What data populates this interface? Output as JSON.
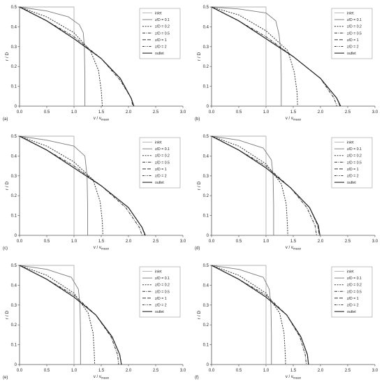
{
  "layout": {
    "cols": 2,
    "rows": 3
  },
  "legend_labels": [
    "inlet",
    "z/D = 0.1",
    "z/D = 0.2",
    "z/D = 0.5",
    "z/D = 1",
    "z/D = 2",
    "outlet"
  ],
  "chart_data": [
    {
      "type": "line",
      "panel_label": "(a)",
      "xlabel_main": "v / v",
      "xlabel_sub": "mean",
      "ylabel": "r / D",
      "xlim": [
        0,
        3
      ],
      "ylim": [
        0,
        0.5
      ],
      "xticks": [
        "0.0",
        "0.5",
        "1.0",
        "1.5",
        "2.0",
        "2.5",
        "3.0"
      ],
      "yticks": [
        "0",
        "0.1",
        "0.2",
        "0.3",
        "0.4",
        "0.5"
      ],
      "grid": false,
      "legend": "top-right",
      "series": [
        {
          "name": "inlet",
          "x": [
            0,
            1,
            1,
            1
          ],
          "y": [
            0.5,
            0.5,
            0.25,
            0
          ]
        },
        {
          "name": "z/D = 0.1",
          "x": [
            0,
            0.5,
            0.9,
            1.1,
            1.17,
            1.19,
            1.2,
            1.2
          ],
          "y": [
            0.5,
            0.48,
            0.45,
            0.41,
            0.37,
            0.3,
            0.15,
            0
          ]
        },
        {
          "name": "z/D = 0.2",
          "x": [
            0,
            0.5,
            1.0,
            1.3,
            1.45,
            1.5,
            1.52
          ],
          "y": [
            0.5,
            0.45,
            0.37,
            0.28,
            0.18,
            0.08,
            0
          ]
        },
        {
          "name": "z/D = 0.5",
          "x": [
            0,
            0.5,
            1.0,
            1.5,
            1.85,
            2.05,
            2.08
          ],
          "y": [
            0.5,
            0.43,
            0.35,
            0.24,
            0.13,
            0.04,
            0
          ]
        },
        {
          "name": "z/D = 1",
          "x": [
            0,
            0.5,
            1.0,
            1.5,
            1.85,
            2.05,
            2.1
          ],
          "y": [
            0.5,
            0.43,
            0.34,
            0.24,
            0.14,
            0.04,
            0
          ]
        },
        {
          "name": "z/D = 2",
          "x": [
            0,
            0.5,
            1.0,
            1.5,
            1.85,
            2.05,
            2.1
          ],
          "y": [
            0.5,
            0.43,
            0.34,
            0.24,
            0.14,
            0.04,
            0
          ]
        },
        {
          "name": "outlet",
          "x": [
            0,
            0.5,
            1.0,
            1.5,
            1.85,
            2.05,
            2.1
          ],
          "y": [
            0.5,
            0.43,
            0.34,
            0.24,
            0.14,
            0.04,
            0
          ]
        }
      ]
    },
    {
      "type": "line",
      "panel_label": "(b)",
      "xlabel_main": "v / v",
      "xlabel_sub": "mean",
      "ylabel": "r / D",
      "xlim": [
        0,
        3
      ],
      "ylim": [
        0,
        0.5
      ],
      "xticks": [
        "0.0",
        "0.5",
        "1.0",
        "1.5",
        "2.0",
        "2.5",
        "3.0"
      ],
      "yticks": [
        "0",
        "0.1",
        "0.2",
        "0.3",
        "0.4",
        "0.5"
      ],
      "grid": false,
      "legend": "top-right",
      "series": [
        {
          "name": "inlet",
          "x": [
            0,
            1,
            1,
            1
          ],
          "y": [
            0.5,
            0.5,
            0.25,
            0
          ]
        },
        {
          "name": "z/D = 0.1",
          "x": [
            0,
            0.5,
            1.0,
            1.18,
            1.24,
            1.27,
            1.28,
            1.28
          ],
          "y": [
            0.5,
            0.49,
            0.47,
            0.43,
            0.36,
            0.28,
            0.15,
            0
          ]
        },
        {
          "name": "z/D = 0.2",
          "x": [
            0,
            0.5,
            1.0,
            1.4,
            1.52,
            1.57,
            1.58
          ],
          "y": [
            0.5,
            0.46,
            0.38,
            0.28,
            0.17,
            0.07,
            0
          ]
        },
        {
          "name": "z/D = 0.5",
          "x": [
            0,
            0.5,
            1.0,
            1.5,
            2.0,
            2.25,
            2.3
          ],
          "y": [
            0.5,
            0.43,
            0.35,
            0.25,
            0.14,
            0.04,
            0
          ]
        },
        {
          "name": "z/D = 1",
          "x": [
            0,
            0.5,
            1.0,
            1.5,
            2.0,
            2.3,
            2.36
          ],
          "y": [
            0.5,
            0.43,
            0.34,
            0.25,
            0.14,
            0.04,
            0
          ]
        },
        {
          "name": "z/D = 2",
          "x": [
            0,
            0.5,
            1.0,
            1.5,
            2.0,
            2.3,
            2.37
          ],
          "y": [
            0.5,
            0.43,
            0.34,
            0.25,
            0.14,
            0.04,
            0
          ]
        },
        {
          "name": "outlet",
          "x": [
            0,
            0.5,
            1.0,
            1.5,
            2.0,
            2.3,
            2.37
          ],
          "y": [
            0.5,
            0.43,
            0.34,
            0.25,
            0.14,
            0.04,
            0
          ]
        }
      ]
    },
    {
      "type": "line",
      "panel_label": "(c)",
      "xlabel_main": "v / v",
      "xlabel_sub": "mean",
      "ylabel": "r / D",
      "xlim": [
        0,
        3
      ],
      "ylim": [
        0,
        0.5
      ],
      "xticks": [
        "0.0",
        "0.5",
        "1.0",
        "1.5",
        "2.0",
        "2.5",
        "3.0"
      ],
      "yticks": [
        "0",
        "0.1",
        "0.2",
        "0.3",
        "0.4",
        "0.5"
      ],
      "grid": false,
      "legend": "top-right",
      "series": [
        {
          "name": "inlet",
          "x": [
            0,
            1,
            1,
            1
          ],
          "y": [
            0.5,
            0.5,
            0.25,
            0
          ]
        },
        {
          "name": "z/D = 0.1",
          "x": [
            0,
            0.5,
            1.0,
            1.2,
            1.24,
            1.25,
            1.25
          ],
          "y": [
            0.5,
            0.48,
            0.45,
            0.4,
            0.3,
            0.15,
            0
          ]
        },
        {
          "name": "z/D = 0.2",
          "x": [
            0,
            0.5,
            1.0,
            1.35,
            1.48,
            1.52,
            1.53
          ],
          "y": [
            0.5,
            0.45,
            0.37,
            0.28,
            0.17,
            0.07,
            0
          ]
        },
        {
          "name": "z/D = 0.5",
          "x": [
            0,
            0.5,
            1.0,
            1.5,
            1.95,
            2.2,
            2.25
          ],
          "y": [
            0.5,
            0.43,
            0.35,
            0.25,
            0.14,
            0.04,
            0
          ]
        },
        {
          "name": "z/D = 1",
          "x": [
            0,
            0.5,
            1.0,
            1.5,
            2.0,
            2.25,
            2.3
          ],
          "y": [
            0.5,
            0.43,
            0.34,
            0.25,
            0.14,
            0.04,
            0
          ]
        },
        {
          "name": "z/D = 2",
          "x": [
            0,
            0.5,
            1.0,
            1.5,
            2.0,
            2.25,
            2.31
          ],
          "y": [
            0.5,
            0.43,
            0.34,
            0.25,
            0.14,
            0.04,
            0
          ]
        },
        {
          "name": "outlet",
          "x": [
            0,
            0.5,
            1.0,
            1.5,
            2.0,
            2.25,
            2.31
          ],
          "y": [
            0.5,
            0.43,
            0.34,
            0.25,
            0.14,
            0.04,
            0
          ]
        }
      ]
    },
    {
      "type": "line",
      "panel_label": "(d)",
      "xlabel_main": "v / v",
      "xlabel_sub": "mean",
      "ylabel": "r / D",
      "xlim": [
        0,
        3
      ],
      "ylim": [
        0,
        0.5
      ],
      "xticks": [
        "0.0",
        "0.5",
        "1.0",
        "1.5",
        "2.0",
        "2.5",
        "3.0"
      ],
      "yticks": [
        "0",
        "0.1",
        "0.2",
        "0.3",
        "0.4",
        "0.5"
      ],
      "grid": false,
      "legend": "top-right",
      "series": [
        {
          "name": "inlet",
          "x": [
            0,
            1,
            1,
            1
          ],
          "y": [
            0.5,
            0.5,
            0.25,
            0
          ]
        },
        {
          "name": "z/D = 0.1",
          "x": [
            0,
            0.5,
            0.95,
            1.1,
            1.13,
            1.14,
            1.14
          ],
          "y": [
            0.5,
            0.48,
            0.44,
            0.38,
            0.3,
            0.15,
            0
          ]
        },
        {
          "name": "z/D = 0.2",
          "x": [
            0,
            0.5,
            1.0,
            1.28,
            1.37,
            1.39,
            1.4
          ],
          "y": [
            0.5,
            0.45,
            0.36,
            0.26,
            0.16,
            0.07,
            0
          ]
        },
        {
          "name": "z/D = 0.5",
          "x": [
            0,
            0.5,
            1.0,
            1.45,
            1.75,
            1.9,
            1.93
          ],
          "y": [
            0.5,
            0.43,
            0.35,
            0.24,
            0.14,
            0.05,
            0
          ]
        },
        {
          "name": "z/D = 1",
          "x": [
            0,
            0.5,
            1.0,
            1.45,
            1.8,
            1.95,
            1.98
          ],
          "y": [
            0.5,
            0.43,
            0.34,
            0.24,
            0.14,
            0.05,
            0
          ]
        },
        {
          "name": "z/D = 2",
          "x": [
            0,
            0.5,
            1.0,
            1.45,
            1.8,
            1.96,
            1.99
          ],
          "y": [
            0.5,
            0.43,
            0.34,
            0.24,
            0.14,
            0.05,
            0
          ]
        },
        {
          "name": "outlet",
          "x": [
            0,
            0.5,
            1.0,
            1.45,
            1.8,
            1.96,
            1.99
          ],
          "y": [
            0.5,
            0.43,
            0.34,
            0.24,
            0.14,
            0.05,
            0
          ]
        }
      ]
    },
    {
      "type": "line",
      "panel_label": "(e)",
      "xlabel_main": "v / v",
      "xlabel_sub": "mean",
      "ylabel": "r / D",
      "xlim": [
        0,
        3
      ],
      "ylim": [
        0,
        0.5
      ],
      "xticks": [
        "0.0",
        "0.5",
        "1.0",
        "1.5",
        "2.0",
        "2.5",
        "3.0"
      ],
      "yticks": [
        "0",
        "0.1",
        "0.2",
        "0.3",
        "0.4",
        "0.5"
      ],
      "grid": false,
      "legend": "top-right",
      "series": [
        {
          "name": "inlet",
          "x": [
            0,
            1,
            1,
            1
          ],
          "y": [
            0.5,
            0.5,
            0.25,
            0
          ]
        },
        {
          "name": "z/D = 0.1",
          "x": [
            0,
            0.5,
            0.95,
            1.08,
            1.11,
            1.12,
            1.12
          ],
          "y": [
            0.5,
            0.48,
            0.44,
            0.38,
            0.3,
            0.15,
            0
          ]
        },
        {
          "name": "z/D = 0.2",
          "x": [
            0,
            0.5,
            1.0,
            1.26,
            1.35,
            1.37,
            1.38
          ],
          "y": [
            0.5,
            0.45,
            0.36,
            0.26,
            0.16,
            0.07,
            0
          ]
        },
        {
          "name": "z/D = 0.5",
          "x": [
            0,
            0.5,
            1.0,
            1.4,
            1.68,
            1.8,
            1.82
          ],
          "y": [
            0.5,
            0.43,
            0.35,
            0.25,
            0.14,
            0.05,
            0
          ]
        },
        {
          "name": "z/D = 1",
          "x": [
            0,
            0.5,
            1.0,
            1.4,
            1.7,
            1.84,
            1.87
          ],
          "y": [
            0.5,
            0.43,
            0.34,
            0.25,
            0.14,
            0.05,
            0
          ]
        },
        {
          "name": "z/D = 2",
          "x": [
            0,
            0.5,
            1.0,
            1.4,
            1.7,
            1.84,
            1.87
          ],
          "y": [
            0.5,
            0.43,
            0.34,
            0.25,
            0.14,
            0.05,
            0
          ]
        },
        {
          "name": "outlet",
          "x": [
            0,
            0.5,
            1.0,
            1.4,
            1.7,
            1.84,
            1.87
          ],
          "y": [
            0.5,
            0.43,
            0.34,
            0.25,
            0.14,
            0.05,
            0
          ]
        }
      ]
    },
    {
      "type": "line",
      "panel_label": "(f)",
      "xlabel_main": "v / v",
      "xlabel_sub": "mean",
      "ylabel": "r / D",
      "xlim": [
        0,
        3
      ],
      "ylim": [
        0,
        0.5
      ],
      "xticks": [
        "0.0",
        "0.5",
        "1.0",
        "1.5",
        "2.0",
        "2.5",
        "3.0"
      ],
      "yticks": [
        "0",
        "0.1",
        "0.2",
        "0.3",
        "0.4",
        "0.5"
      ],
      "grid": false,
      "legend": "top-right",
      "series": [
        {
          "name": "inlet",
          "x": [
            0,
            1,
            1,
            1
          ],
          "y": [
            0.5,
            0.5,
            0.25,
            0
          ]
        },
        {
          "name": "z/D = 0.1",
          "x": [
            0,
            0.5,
            0.95,
            1.06,
            1.09,
            1.1,
            1.1
          ],
          "y": [
            0.5,
            0.48,
            0.44,
            0.38,
            0.3,
            0.15,
            0
          ]
        },
        {
          "name": "z/D = 0.2",
          "x": [
            0,
            0.5,
            1.0,
            1.25,
            1.33,
            1.35,
            1.36
          ],
          "y": [
            0.5,
            0.45,
            0.36,
            0.26,
            0.16,
            0.07,
            0
          ]
        },
        {
          "name": "z/D = 0.5",
          "x": [
            0,
            0.5,
            1.0,
            1.38,
            1.62,
            1.72,
            1.74
          ],
          "y": [
            0.5,
            0.43,
            0.35,
            0.25,
            0.14,
            0.05,
            0
          ]
        },
        {
          "name": "z/D = 1",
          "x": [
            0,
            0.5,
            1.0,
            1.38,
            1.64,
            1.76,
            1.78
          ],
          "y": [
            0.5,
            0.43,
            0.34,
            0.25,
            0.14,
            0.05,
            0
          ]
        },
        {
          "name": "z/D = 2",
          "x": [
            0,
            0.5,
            1.0,
            1.38,
            1.64,
            1.76,
            1.78
          ],
          "y": [
            0.5,
            0.43,
            0.34,
            0.25,
            0.14,
            0.05,
            0
          ]
        },
        {
          "name": "outlet",
          "x": [
            0,
            0.5,
            1.0,
            1.38,
            1.64,
            1.76,
            1.78
          ],
          "y": [
            0.5,
            0.43,
            0.34,
            0.25,
            0.14,
            0.05,
            0
          ]
        }
      ]
    }
  ]
}
